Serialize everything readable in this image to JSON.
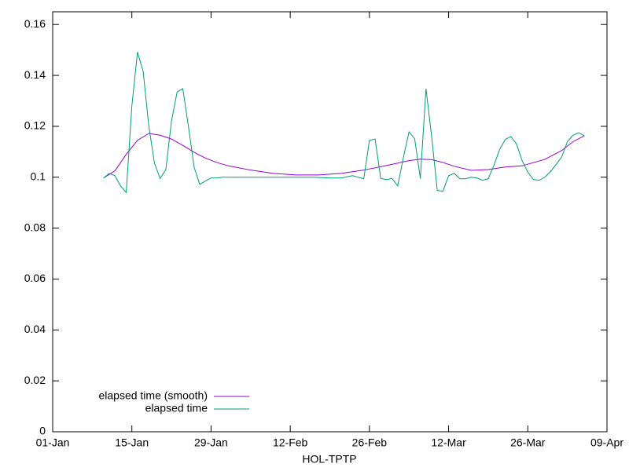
{
  "chart_data": {
    "type": "line",
    "x_label": "HOL-TPTP",
    "xlim": [
      "01-Jan",
      "09-Apr"
    ],
    "xticks": [
      "01-Jan",
      "15-Jan",
      "29-Jan",
      "12-Feb",
      "26-Feb",
      "12-Mar",
      "26-Mar",
      "09-Apr"
    ],
    "ylim": [
      0,
      0.165
    ],
    "yticks": [
      0,
      0.02,
      0.04,
      0.06,
      0.08,
      0.1,
      0.12,
      0.14,
      0.16
    ],
    "legend": "bottom-left",
    "series": [
      {
        "name": "elapsed time (smooth)",
        "color": "#9400d3",
        "x": [
          "10-Jan",
          "12-Jan",
          "14-Jan",
          "16-Jan",
          "18-Jan",
          "20-Jan",
          "22-Jan",
          "24-Jan",
          "26-Jan",
          "28-Jan",
          "30-Jan",
          "01-Feb",
          "05-Feb",
          "09-Feb",
          "13-Feb",
          "17-Feb",
          "21-Feb",
          "25-Feb",
          "01-Mar",
          "05-Mar",
          "07-Mar",
          "09-Mar",
          "11-Mar",
          "13-Mar",
          "16-Mar",
          "19-Mar",
          "22-Mar",
          "25-Mar",
          "29-Mar",
          "01-Apr",
          "03-Apr",
          "05-Apr"
        ],
        "values": [
          0.0997,
          0.1025,
          0.109,
          0.1145,
          0.1172,
          0.1165,
          0.115,
          0.1125,
          0.1098,
          0.1075,
          0.1058,
          0.1045,
          0.1028,
          0.1015,
          0.1009,
          0.1009,
          0.1015,
          0.1028,
          0.1046,
          0.1065,
          0.1071,
          0.1069,
          0.1058,
          0.1043,
          0.1027,
          0.103,
          0.104,
          0.1045,
          0.107,
          0.1105,
          0.114,
          0.1163
        ]
      },
      {
        "name": "elapsed time",
        "color": "#009e73",
        "x": [
          "10-Jan",
          "11-Jan",
          "12-Jan",
          "13-Jan",
          "14-Jan",
          "15-Jan",
          "16-Jan",
          "17-Jan",
          "18-Jan",
          "19-Jan",
          "20-Jan",
          "21-Jan",
          "22-Jan",
          "23-Jan",
          "24-Jan",
          "25-Jan",
          "26-Jan",
          "27-Jan",
          "28-Jan",
          "29-Jan",
          "30-Jan",
          "31-Jan",
          "04-Feb",
          "08-Feb",
          "12-Feb",
          "16-Feb",
          "19-Feb",
          "21-Feb",
          "23-Feb",
          "25-Feb",
          "26-Feb",
          "27-Feb",
          "28-Feb",
          "01-Mar",
          "02-Mar",
          "03-Mar",
          "04-Mar",
          "05-Mar",
          "06-Mar",
          "07-Mar",
          "08-Mar",
          "09-Mar",
          "10-Mar",
          "11-Mar",
          "12-Mar",
          "13-Mar",
          "14-Mar",
          "15-Mar",
          "16-Mar",
          "17-Mar",
          "18-Mar",
          "19-Mar",
          "20-Mar",
          "21-Mar",
          "22-Mar",
          "23-Mar",
          "24-Mar",
          "25-Mar",
          "26-Mar",
          "27-Mar",
          "28-Mar",
          "29-Mar",
          "30-Mar",
          "31-Mar",
          "01-Apr",
          "02-Apr",
          "03-Apr",
          "04-Apr",
          "05-Apr"
        ],
        "values": [
          0.0997,
          0.1015,
          0.1006,
          0.0966,
          0.094,
          0.128,
          0.1492,
          0.1415,
          0.12,
          0.1055,
          0.0995,
          0.103,
          0.122,
          0.1335,
          0.1348,
          0.12,
          0.104,
          0.0972,
          0.0985,
          0.0997,
          0.0997,
          0.1,
          0.1,
          0.1,
          0.1,
          0.1,
          0.0997,
          0.0997,
          0.1006,
          0.0994,
          0.1145,
          0.115,
          0.0995,
          0.0991,
          0.0995,
          0.0966,
          0.1077,
          0.1178,
          0.1151,
          0.0995,
          0.1348,
          0.116,
          0.0948,
          0.0945,
          0.1006,
          0.1015,
          0.0994,
          0.0994,
          0.1,
          0.0997,
          0.0988,
          0.0994,
          0.1046,
          0.1108,
          0.1148,
          0.116,
          0.1131,
          0.1065,
          0.102,
          0.0991,
          0.0988,
          0.1,
          0.1022,
          0.105,
          0.108,
          0.114,
          0.1165,
          0.1175,
          0.1163
        ]
      }
    ]
  }
}
